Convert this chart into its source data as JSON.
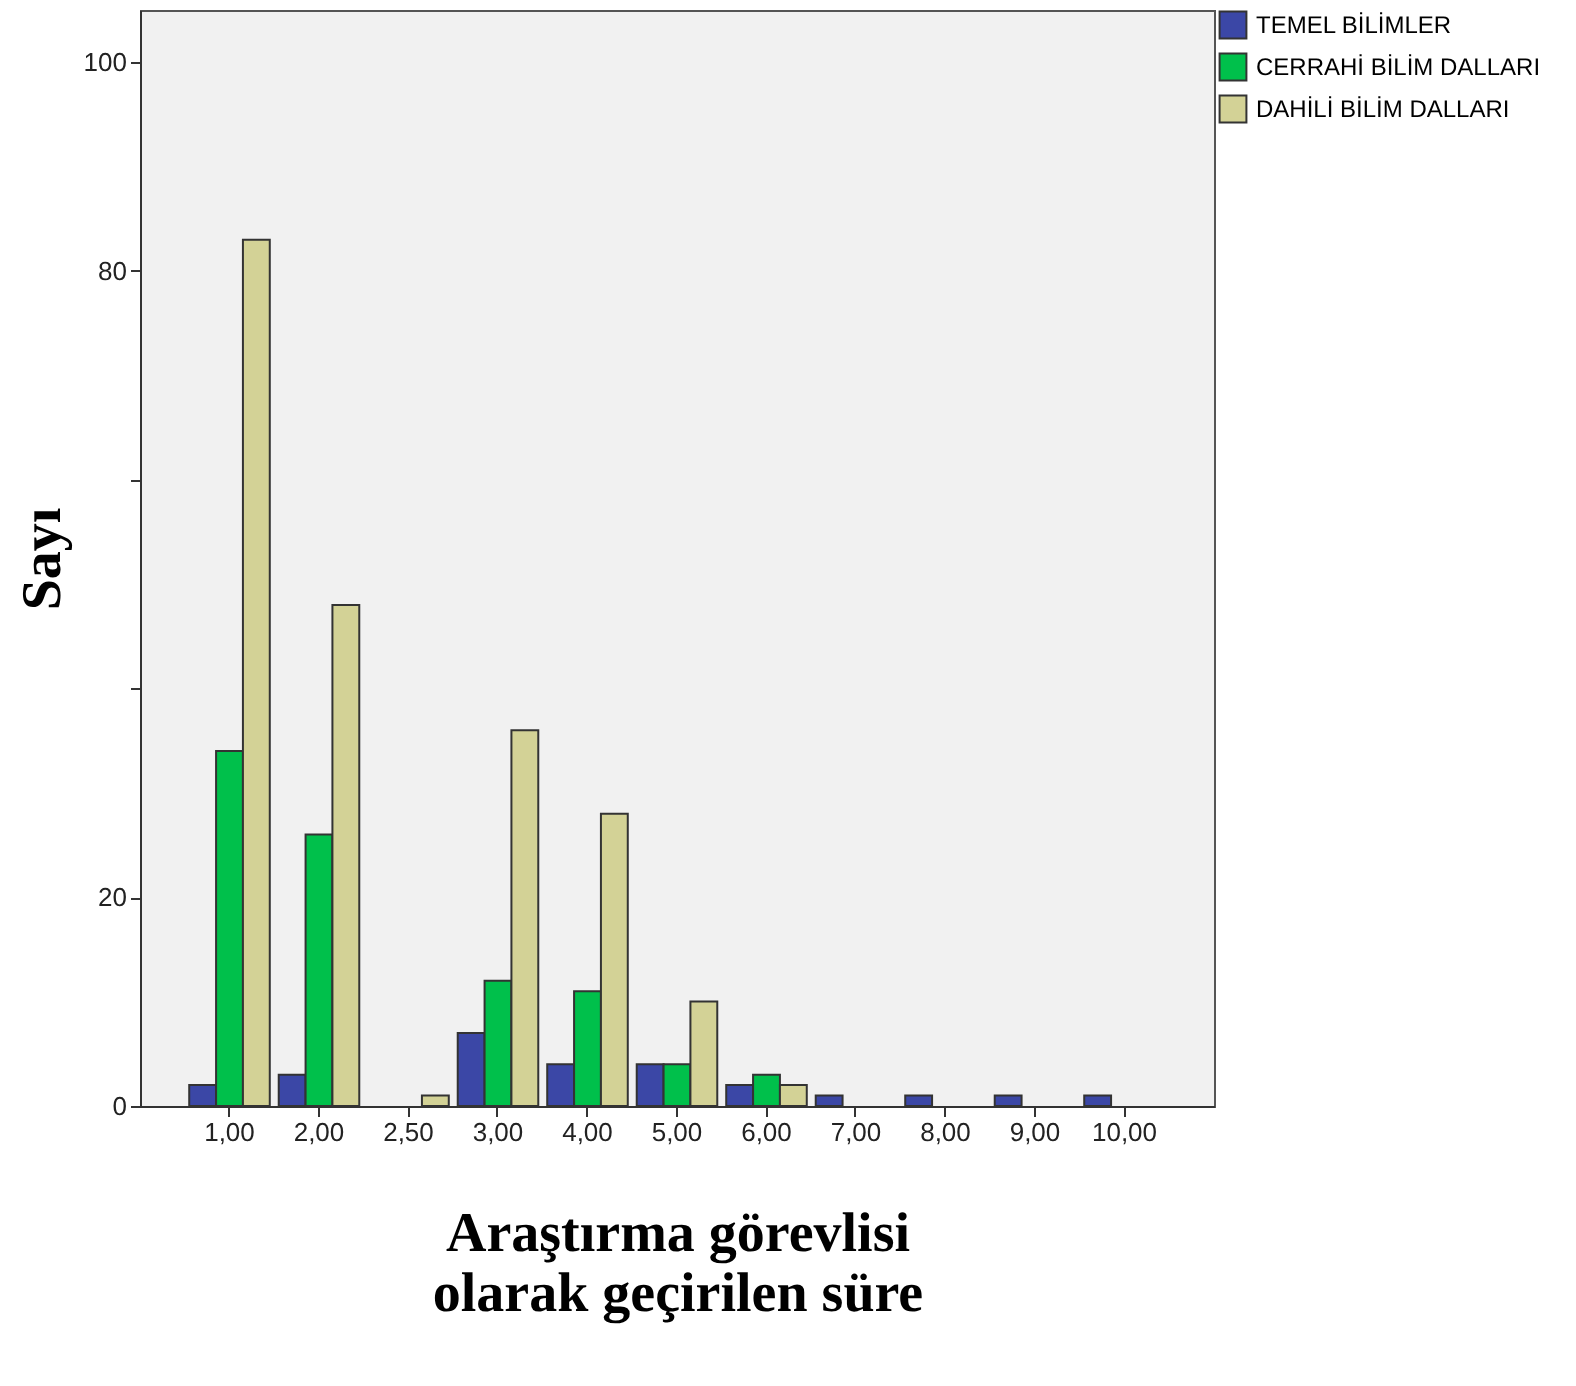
{
  "chart_data": {
    "type": "bar",
    "xlabel": "Araştırma görevlisi olarak geçirilen süre",
    "ylabel": "Sayı",
    "categories": [
      "1,00",
      "2,00",
      "2,50",
      "3,00",
      "4,00",
      "5,00",
      "6,00",
      "7,00",
      "8,00",
      "9,00",
      "10,00"
    ],
    "series": [
      {
        "name": "TEMEL BİLİMLER",
        "color": "#3b47a6",
        "values": [
          2,
          3,
          null,
          7,
          4,
          4,
          2,
          1,
          1,
          1,
          1
        ]
      },
      {
        "name": "CERRAHİ BİLİM DALLARI",
        "color": "#00c04b",
        "values": [
          34,
          26,
          null,
          12,
          11,
          4,
          3,
          null,
          null,
          null,
          null
        ]
      },
      {
        "name": "DAHİLİ BİLİM DALLARI",
        "color": "#d3d296",
        "values": [
          83,
          48,
          1,
          36,
          28,
          10,
          2,
          null,
          null,
          null,
          null
        ]
      }
    ],
    "ylim": [
      0,
      105
    ],
    "yticks": [
      0,
      20,
      {
        "value": 40,
        "label": null
      },
      {
        "value": 60,
        "label": null
      },
      80,
      100
    ],
    "grid": false,
    "legend": "top right"
  }
}
